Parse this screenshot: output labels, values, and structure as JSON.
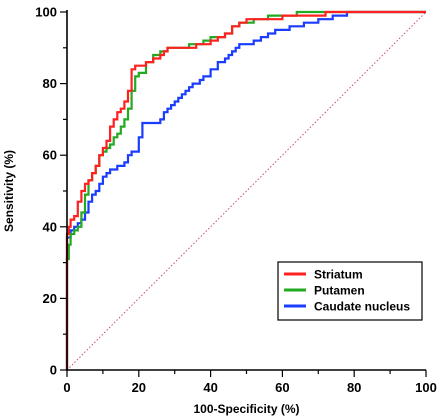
{
  "chart_data": {
    "type": "line",
    "xlabel": "100-Specificity (%)",
    "ylabel": "Sensitivity (%)",
    "xlim": [
      0,
      100
    ],
    "ylim": [
      0,
      100
    ],
    "xticks": [
      "0",
      "20",
      "40",
      "60",
      "80",
      "100"
    ],
    "yticks": [
      "0",
      "20",
      "40",
      "60",
      "80",
      "100"
    ],
    "grid": false,
    "legend_position": "bottom-right",
    "diagonal_reference": {
      "color": "#c8506e",
      "style": "dotted",
      "from": [
        0,
        0
      ],
      "to": [
        100,
        100
      ]
    },
    "series": [
      {
        "name": "Striatum",
        "color": "#ff2020",
        "points": [
          [
            0,
            0
          ],
          [
            0,
            38
          ],
          [
            0.5,
            38
          ],
          [
            0.5,
            40
          ],
          [
            1,
            40
          ],
          [
            1,
            42
          ],
          [
            2,
            42
          ],
          [
            2,
            43
          ],
          [
            3,
            43
          ],
          [
            3,
            47
          ],
          [
            4,
            47
          ],
          [
            4,
            50
          ],
          [
            5,
            50
          ],
          [
            5,
            52
          ],
          [
            6,
            52
          ],
          [
            6,
            53
          ],
          [
            7,
            53
          ],
          [
            7,
            55
          ],
          [
            8,
            55
          ],
          [
            8,
            57
          ],
          [
            9,
            57
          ],
          [
            9,
            60
          ],
          [
            10,
            60
          ],
          [
            10,
            62
          ],
          [
            11,
            62
          ],
          [
            11,
            64
          ],
          [
            12,
            64
          ],
          [
            12,
            68
          ],
          [
            13,
            68
          ],
          [
            13,
            70
          ],
          [
            14,
            70
          ],
          [
            14,
            72
          ],
          [
            15,
            72
          ],
          [
            15,
            73
          ],
          [
            16,
            73
          ],
          [
            16,
            75
          ],
          [
            17,
            75
          ],
          [
            17,
            78
          ],
          [
            18,
            78
          ],
          [
            18,
            84
          ],
          [
            19,
            84
          ],
          [
            19,
            85
          ],
          [
            22,
            85
          ],
          [
            22,
            86
          ],
          [
            24,
            86
          ],
          [
            24,
            87
          ],
          [
            26,
            87
          ],
          [
            26,
            88
          ],
          [
            27,
            88
          ],
          [
            27,
            89
          ],
          [
            28,
            89
          ],
          [
            28,
            90
          ],
          [
            36,
            90
          ],
          [
            36,
            91
          ],
          [
            40,
            91
          ],
          [
            40,
            92
          ],
          [
            42,
            92
          ],
          [
            42,
            93
          ],
          [
            44,
            93
          ],
          [
            44,
            94
          ],
          [
            46,
            94
          ],
          [
            46,
            96
          ],
          [
            48,
            96
          ],
          [
            48,
            97
          ],
          [
            50,
            97
          ],
          [
            50,
            98
          ],
          [
            60,
            98
          ],
          [
            60,
            99
          ],
          [
            72,
            99
          ],
          [
            72,
            100
          ],
          [
            100,
            100
          ]
        ]
      },
      {
        "name": "Putamen",
        "color": "#22aa22",
        "points": [
          [
            0,
            0
          ],
          [
            0,
            31
          ],
          [
            0.5,
            31
          ],
          [
            0.5,
            35
          ],
          [
            1,
            35
          ],
          [
            1,
            38
          ],
          [
            2,
            38
          ],
          [
            2,
            39
          ],
          [
            3,
            39
          ],
          [
            3,
            40
          ],
          [
            4,
            40
          ],
          [
            4,
            44
          ],
          [
            5,
            44
          ],
          [
            5,
            49
          ],
          [
            6,
            49
          ],
          [
            6,
            53
          ],
          [
            7,
            53
          ],
          [
            7,
            55
          ],
          [
            8,
            55
          ],
          [
            8,
            57
          ],
          [
            9,
            57
          ],
          [
            9,
            60
          ],
          [
            10,
            60
          ],
          [
            10,
            61
          ],
          [
            11,
            61
          ],
          [
            11,
            62
          ],
          [
            12,
            62
          ],
          [
            12,
            63
          ],
          [
            13,
            63
          ],
          [
            13,
            65
          ],
          [
            14,
            65
          ],
          [
            14,
            66
          ],
          [
            15,
            66
          ],
          [
            15,
            68
          ],
          [
            16,
            68
          ],
          [
            16,
            70
          ],
          [
            17,
            70
          ],
          [
            17,
            73
          ],
          [
            18,
            73
          ],
          [
            18,
            78
          ],
          [
            19,
            78
          ],
          [
            19,
            82
          ],
          [
            20,
            82
          ],
          [
            20,
            83
          ],
          [
            22,
            83
          ],
          [
            22,
            86
          ],
          [
            24,
            86
          ],
          [
            24,
            88
          ],
          [
            26,
            88
          ],
          [
            26,
            89
          ],
          [
            28,
            89
          ],
          [
            28,
            90
          ],
          [
            34,
            90
          ],
          [
            34,
            91
          ],
          [
            38,
            91
          ],
          [
            38,
            92
          ],
          [
            40,
            92
          ],
          [
            40,
            93
          ],
          [
            44,
            93
          ],
          [
            44,
            94
          ],
          [
            46,
            94
          ],
          [
            46,
            96
          ],
          [
            48,
            96
          ],
          [
            48,
            97
          ],
          [
            52,
            97
          ],
          [
            52,
            98
          ],
          [
            56,
            98
          ],
          [
            56,
            99
          ],
          [
            64,
            99
          ],
          [
            64,
            100
          ],
          [
            100,
            100
          ]
        ]
      },
      {
        "name": "Caudate nucleus",
        "color": "#1a3cff",
        "points": [
          [
            0,
            0
          ],
          [
            0,
            37
          ],
          [
            1,
            37
          ],
          [
            1,
            39
          ],
          [
            2,
            39
          ],
          [
            2,
            40
          ],
          [
            3,
            40
          ],
          [
            3,
            41
          ],
          [
            4,
            41
          ],
          [
            4,
            42
          ],
          [
            5,
            42
          ],
          [
            5,
            44
          ],
          [
            6,
            44
          ],
          [
            6,
            47
          ],
          [
            7,
            47
          ],
          [
            7,
            49
          ],
          [
            8,
            49
          ],
          [
            8,
            50
          ],
          [
            9,
            50
          ],
          [
            9,
            52
          ],
          [
            10,
            52
          ],
          [
            10,
            54
          ],
          [
            11,
            54
          ],
          [
            11,
            55
          ],
          [
            12,
            55
          ],
          [
            12,
            56
          ],
          [
            14,
            56
          ],
          [
            14,
            57
          ],
          [
            16,
            57
          ],
          [
            16,
            58
          ],
          [
            17,
            58
          ],
          [
            17,
            60
          ],
          [
            18,
            60
          ],
          [
            18,
            61
          ],
          [
            20,
            61
          ],
          [
            20,
            65
          ],
          [
            21,
            65
          ],
          [
            21,
            69
          ],
          [
            26,
            69
          ],
          [
            26,
            70
          ],
          [
            27,
            70
          ],
          [
            27,
            72
          ],
          [
            28,
            72
          ],
          [
            28,
            73
          ],
          [
            29,
            73
          ],
          [
            29,
            74
          ],
          [
            30,
            74
          ],
          [
            30,
            75
          ],
          [
            31,
            75
          ],
          [
            31,
            76
          ],
          [
            32,
            76
          ],
          [
            32,
            77
          ],
          [
            33,
            77
          ],
          [
            33,
            78
          ],
          [
            34,
            78
          ],
          [
            34,
            79
          ],
          [
            35,
            79
          ],
          [
            35,
            80
          ],
          [
            37,
            80
          ],
          [
            37,
            81
          ],
          [
            38,
            81
          ],
          [
            38,
            82
          ],
          [
            40,
            82
          ],
          [
            40,
            84
          ],
          [
            42,
            84
          ],
          [
            42,
            86
          ],
          [
            44,
            86
          ],
          [
            44,
            87
          ],
          [
            45,
            87
          ],
          [
            45,
            88
          ],
          [
            46,
            88
          ],
          [
            46,
            89
          ],
          [
            47,
            89
          ],
          [
            47,
            90
          ],
          [
            48,
            90
          ],
          [
            48,
            91
          ],
          [
            52,
            91
          ],
          [
            52,
            92
          ],
          [
            54,
            92
          ],
          [
            54,
            93
          ],
          [
            56,
            93
          ],
          [
            56,
            94
          ],
          [
            58,
            94
          ],
          [
            58,
            95
          ],
          [
            62,
            95
          ],
          [
            62,
            96
          ],
          [
            66,
            96
          ],
          [
            66,
            97
          ],
          [
            70,
            97
          ],
          [
            70,
            98
          ],
          [
            74,
            98
          ],
          [
            74,
            99
          ],
          [
            78,
            99
          ],
          [
            78,
            100
          ],
          [
            100,
            100
          ]
        ]
      }
    ]
  }
}
